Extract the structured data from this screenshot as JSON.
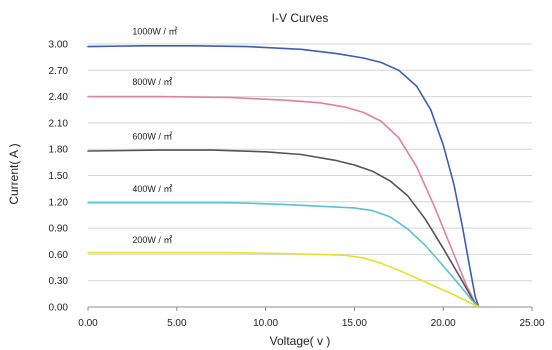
{
  "chart_data": {
    "type": "line",
    "title": "I-V Curves",
    "xlabel": "Voltage( v )",
    "ylabel": "Current( A )",
    "xlim": [
      0,
      25
    ],
    "ylim": [
      0,
      3
    ],
    "xticks": [
      "0.00",
      "5.00",
      "10.00",
      "15.00",
      "20.00",
      "25.00"
    ],
    "yticks": [
      "0.00",
      "0.30",
      "0.60",
      "0.90",
      "1.20",
      "1.50",
      "1.80",
      "2.10",
      "2.40",
      "2.70",
      "3.00"
    ],
    "grid": "horizontal",
    "series": [
      {
        "name": "1000W / ㎡",
        "color": "#3a5fb5",
        "points": [
          [
            0,
            2.97
          ],
          [
            3,
            2.98
          ],
          [
            6,
            2.98
          ],
          [
            9,
            2.97
          ],
          [
            12,
            2.94
          ],
          [
            14,
            2.89
          ],
          [
            15.5,
            2.84
          ],
          [
            16.5,
            2.79
          ],
          [
            17.5,
            2.7
          ],
          [
            18.5,
            2.52
          ],
          [
            19.3,
            2.25
          ],
          [
            20,
            1.85
          ],
          [
            20.6,
            1.4
          ],
          [
            21.1,
            0.9
          ],
          [
            21.5,
            0.45
          ],
          [
            21.8,
            0.12
          ],
          [
            22,
            0
          ]
        ]
      },
      {
        "name": "800W / ㎡",
        "color": "#e27fa6",
        "points": [
          [
            0,
            2.4
          ],
          [
            4,
            2.4
          ],
          [
            8,
            2.39
          ],
          [
            11,
            2.36
          ],
          [
            13,
            2.33
          ],
          [
            14.5,
            2.28
          ],
          [
            15.5,
            2.22
          ],
          [
            16.5,
            2.12
          ],
          [
            17.5,
            1.93
          ],
          [
            18.5,
            1.6
          ],
          [
            19.5,
            1.15
          ],
          [
            20.5,
            0.65
          ],
          [
            21.3,
            0.25
          ],
          [
            21.8,
            0.05
          ],
          [
            22,
            0
          ]
        ]
      },
      {
        "name": "600W / ㎡",
        "color": "#555555",
        "points": [
          [
            0,
            1.78
          ],
          [
            4,
            1.79
          ],
          [
            7,
            1.79
          ],
          [
            10,
            1.77
          ],
          [
            12,
            1.74
          ],
          [
            14,
            1.67
          ],
          [
            15,
            1.62
          ],
          [
            16,
            1.55
          ],
          [
            17,
            1.44
          ],
          [
            18,
            1.27
          ],
          [
            19,
            1.0
          ],
          [
            20,
            0.67
          ],
          [
            21,
            0.32
          ],
          [
            21.7,
            0.07
          ],
          [
            22,
            0
          ]
        ]
      },
      {
        "name": "400W / ㎡",
        "color": "#5bc2d6",
        "points": [
          [
            0,
            1.19
          ],
          [
            4,
            1.19
          ],
          [
            8,
            1.19
          ],
          [
            11,
            1.17
          ],
          [
            13,
            1.15
          ],
          [
            15,
            1.13
          ],
          [
            16,
            1.1
          ],
          [
            17,
            1.03
          ],
          [
            18,
            0.89
          ],
          [
            19,
            0.7
          ],
          [
            20,
            0.47
          ],
          [
            21,
            0.23
          ],
          [
            21.6,
            0.08
          ],
          [
            22,
            0
          ]
        ]
      },
      {
        "name": "200W / ㎡",
        "color": "#e9e02e",
        "points": [
          [
            0,
            0.62
          ],
          [
            4,
            0.62
          ],
          [
            8,
            0.62
          ],
          [
            11,
            0.61
          ],
          [
            13,
            0.6
          ],
          [
            14.5,
            0.59
          ],
          [
            15.5,
            0.56
          ],
          [
            16.5,
            0.5
          ],
          [
            17.5,
            0.42
          ],
          [
            18.5,
            0.33
          ],
          [
            19.5,
            0.24
          ],
          [
            20.5,
            0.15
          ],
          [
            21.3,
            0.07
          ],
          [
            22,
            0
          ]
        ]
      }
    ],
    "annotations": [
      {
        "text": "1000W / ㎡",
        "x": 2.5,
        "y": 3.11
      },
      {
        "text": "800W / ㎡",
        "x": 2.5,
        "y": 2.53
      },
      {
        "text": "600W / ㎡",
        "x": 2.5,
        "y": 1.91
      },
      {
        "text": "400W / ㎡",
        "x": 2.5,
        "y": 1.31
      },
      {
        "text": "200W / ㎡",
        "x": 2.5,
        "y": 0.73
      }
    ]
  }
}
